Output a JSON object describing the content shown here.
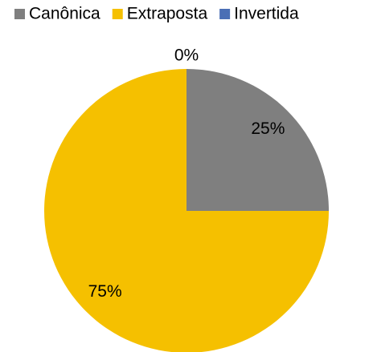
{
  "chart_data": {
    "type": "pie",
    "categories": [
      "Canônica",
      "Extraposta",
      "Invertida"
    ],
    "values": [
      25,
      75,
      0
    ],
    "value_labels": [
      "25%",
      "75%",
      "0%"
    ],
    "colors": [
      "#7f7f7f",
      "#f5c000",
      "#4a6fb5"
    ],
    "legend": "top"
  }
}
